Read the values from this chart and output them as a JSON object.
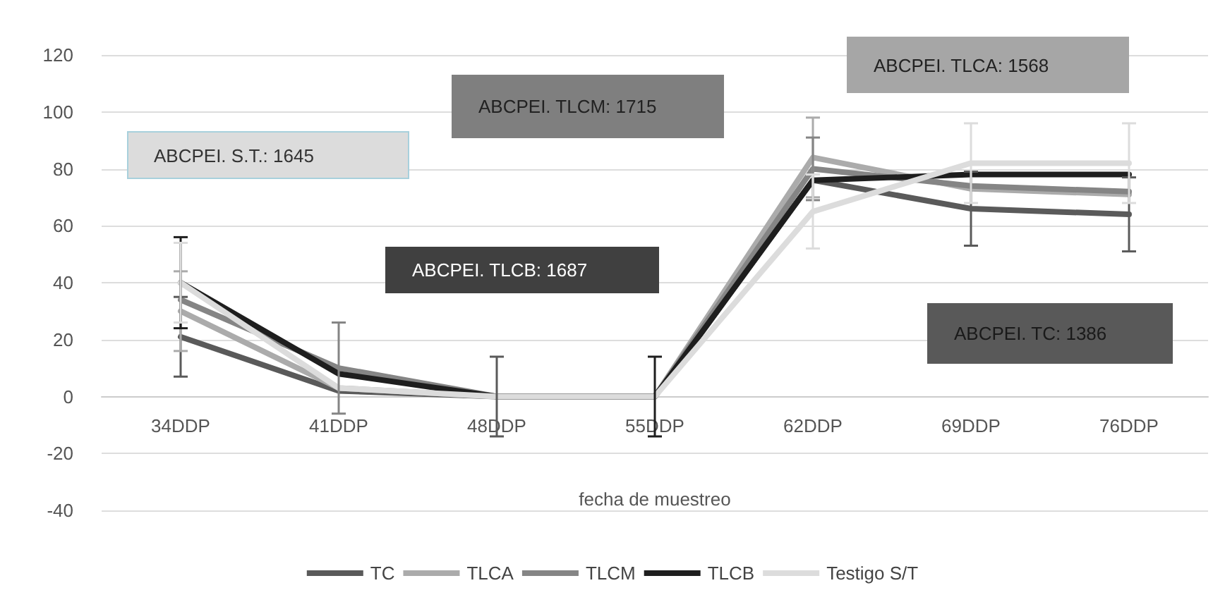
{
  "chart_data": {
    "type": "line",
    "xlabel": "fecha de muestreo",
    "categories": [
      "34DDP",
      "41DDP",
      "48DDP",
      "55DDP",
      "62DDP",
      "69DDP",
      "76DDP"
    ],
    "series": [
      {
        "name": "TC",
        "color": "#5a5a5a",
        "values": [
          21,
          2,
          0,
          0,
          76,
          66,
          64
        ],
        "errors": [
          14,
          null,
          14,
          null,
          null,
          13,
          13
        ]
      },
      {
        "name": "TLCA",
        "color": "#ababab",
        "values": [
          30,
          3,
          0,
          0,
          84,
          73,
          71
        ],
        "errors": [
          14,
          null,
          null,
          null,
          14,
          null,
          null
        ]
      },
      {
        "name": "TLCM",
        "color": "#858585",
        "values": [
          34,
          10,
          0,
          0,
          80,
          74,
          72
        ],
        "errors": [
          null,
          16,
          null,
          null,
          11,
          null,
          null
        ]
      },
      {
        "name": "TLCB",
        "color": "#1e1e1e",
        "values": [
          40,
          8,
          0,
          0,
          76,
          78,
          78
        ],
        "errors": [
          16,
          null,
          null,
          14,
          null,
          null,
          null
        ]
      },
      {
        "name": "Testigo S/T",
        "color": "#dcdcdc",
        "values": [
          40,
          3,
          0,
          0,
          65,
          82,
          82
        ],
        "errors": [
          14,
          null,
          null,
          null,
          13,
          14,
          14
        ]
      }
    ],
    "ylim": [
      -40,
      120
    ],
    "yticks": [
      -40,
      -20,
      0,
      20,
      40,
      60,
      80,
      100,
      120
    ],
    "grid": "y",
    "legend": "bottom",
    "marker": "none",
    "line_style": "solid",
    "annotations": [
      "ABCPEI. S.T.: 1645",
      "ABCPEI. TLCM: 1715",
      "ABCPEI. TLCB: 1687",
      "ABCPEI. TLCA: 1568",
      "ABCPEI. TC: 1386"
    ]
  }
}
